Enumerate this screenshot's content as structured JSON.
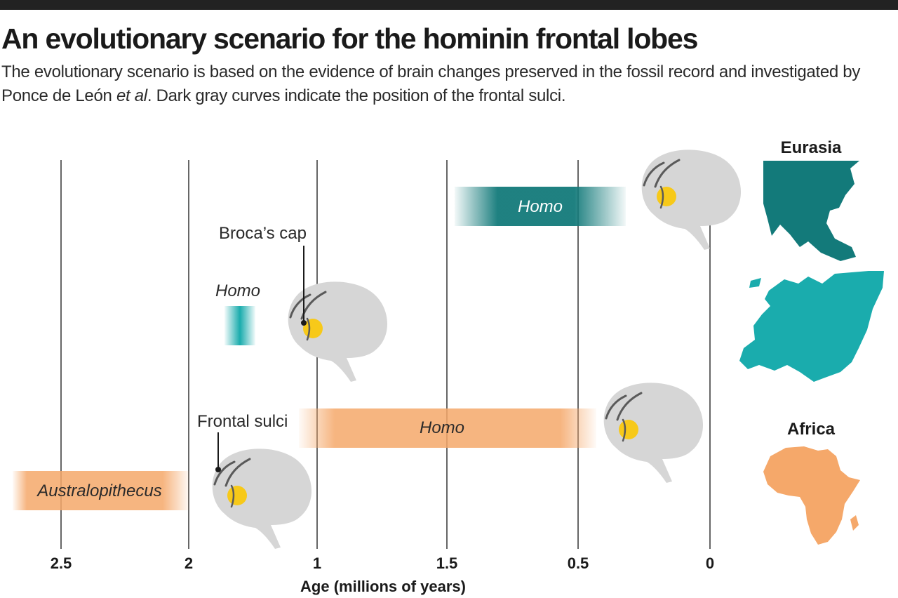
{
  "title": "An evolutionary scenario for the hominin frontal lobes",
  "subtitle": {
    "before": "The evolutionary scenario is based on the evidence of brain changes preserved in the fossil record and investigated by Ponce de León ",
    "italic": "et al",
    "after": ". Dark gray curves indicate the position of the frontal sulci."
  },
  "axis": {
    "label": "Age (millions of years)",
    "ticks": [
      "2.5",
      "2",
      "1",
      "1.5",
      "0.5",
      "0"
    ]
  },
  "bars": [
    {
      "label": "Australopithecus",
      "region": "Africa",
      "color": "#f5a86a"
    },
    {
      "label": "Homo",
      "region": "Africa",
      "color": "#f5a86a"
    },
    {
      "label": "Homo",
      "region": "Eurasia",
      "color": "#1aacad"
    },
    {
      "label": "Homo",
      "region": "Eurasia",
      "color": "#137a7a"
    }
  ],
  "callouts": {
    "frontal_sulci": "Frontal sulci",
    "brocas_cap": "Broca’s cap"
  },
  "regions": {
    "eurasia": "Eurasia",
    "africa": "Africa"
  },
  "colors": {
    "orange": "#f5a86a",
    "teal_light": "#1aacad",
    "teal_dark": "#137a7a",
    "brain_gray": "#d6d6d6",
    "sulci": "#5a5a5a",
    "broca": "#f7c919"
  }
}
